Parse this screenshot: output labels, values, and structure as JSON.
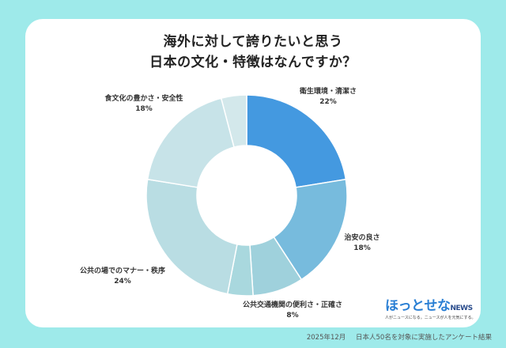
{
  "chart_data": {
    "type": "pie",
    "variant": "donut",
    "title_line1": "海外に対して誇りたいと思う",
    "title_line2": "日本の文化・特徴はなんですか？",
    "slices": [
      {
        "label": "衛生環境・清潔さ",
        "value": 22,
        "value_label": "22%",
        "color": "#4499E0"
      },
      {
        "label": "治安の良さ",
        "value": 18,
        "value_label": "18%",
        "color": "#77BBDD"
      },
      {
        "label": "公共交通機関の便利さ・正確さ",
        "value": 8,
        "value_label": "8%",
        "color": "#9FD1DC"
      },
      {
        "label": "",
        "value": 4,
        "value_label": "",
        "color": "#A9D8DE"
      },
      {
        "label": "公共の場でのマナー・秩序",
        "value": 24,
        "value_label": "24%",
        "color": "#B9DDE3"
      },
      {
        "label": "食文化の豊かさ・安全性",
        "value": 18,
        "value_label": "18%",
        "color": "#C7E3E8"
      },
      {
        "label": "",
        "value": 4,
        "value_label": "",
        "color": "#D3E8EB"
      }
    ]
  },
  "logo": {
    "name_part1": "ほっとせな",
    "name_part2": "NEWS",
    "tagline": "人がニュースになる。ニュースが人を元気にする。"
  },
  "footer": {
    "date": "2025年12月",
    "note": "日本人50名を対象に実施したアンケート結果"
  }
}
